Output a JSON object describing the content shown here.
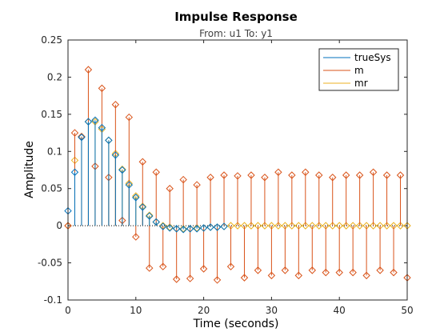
{
  "chart_data": {
    "type": "stem",
    "title": "Impulse Response",
    "subtitle": "From: u1  To: y1",
    "xlabel": "Time (seconds)",
    "ylabel": "Amplitude",
    "xlim": [
      0,
      50
    ],
    "ylim": [
      -0.1,
      0.25
    ],
    "xticks": [
      0,
      10,
      20,
      30,
      40,
      50
    ],
    "yticks": [
      -0.1,
      -0.05,
      0,
      0.05,
      0.1,
      0.15,
      0.2,
      0.25
    ],
    "xtick_labels": [
      "0",
      "10",
      "20",
      "30",
      "40",
      "50"
    ],
    "ytick_labels": [
      "-0.1",
      "-0.05",
      "0",
      "0.05",
      "0.1",
      "0.15",
      "0.2",
      "0.25"
    ],
    "grid": false,
    "legend_position": "top-right",
    "series": [
      {
        "name": "trueSys",
        "color": "#0072BD",
        "x": [
          0,
          1,
          2,
          3,
          4,
          5,
          6,
          7,
          8,
          9,
          10,
          11,
          12,
          13,
          14,
          15,
          16,
          17,
          18,
          19,
          20,
          21,
          22,
          23
        ],
        "values": [
          0.02,
          0.072,
          0.119,
          0.14,
          0.142,
          0.132,
          0.115,
          0.095,
          0.075,
          0.055,
          0.038,
          0.025,
          0.013,
          0.005,
          -0.001,
          -0.003,
          -0.004,
          -0.005,
          -0.004,
          -0.004,
          -0.003,
          -0.002,
          -0.002,
          -0.001
        ]
      },
      {
        "name": "m",
        "color": "#D95319",
        "x": [
          0,
          1,
          2,
          3,
          4,
          5,
          6,
          7,
          8,
          9,
          10,
          11,
          12,
          13,
          14,
          15,
          16,
          17,
          18,
          19,
          20,
          21,
          22,
          23,
          24,
          25,
          26,
          27,
          28,
          29,
          30,
          31,
          32,
          33,
          34,
          35,
          36,
          37,
          38,
          39,
          40,
          41,
          42,
          43,
          44,
          45,
          46,
          47,
          48,
          49,
          50
        ],
        "values": [
          0.0,
          0.125,
          0.12,
          0.21,
          0.08,
          0.185,
          0.065,
          0.163,
          0.007,
          0.146,
          -0.015,
          0.086,
          -0.057,
          0.072,
          -0.055,
          0.05,
          -0.072,
          0.062,
          -0.071,
          0.055,
          -0.058,
          0.065,
          -0.073,
          0.068,
          -0.055,
          0.067,
          -0.07,
          0.068,
          -0.06,
          0.065,
          -0.067,
          0.072,
          -0.06,
          0.068,
          -0.067,
          0.072,
          -0.06,
          0.068,
          -0.063,
          0.065,
          -0.063,
          0.068,
          -0.063,
          0.068,
          -0.067,
          0.072,
          -0.06,
          0.068,
          -0.063,
          0.068,
          -0.07
        ]
      },
      {
        "name": "mr",
        "color": "#EDB120",
        "x": [
          0,
          1,
          2,
          3,
          4,
          5,
          6,
          7,
          8,
          9,
          10,
          11,
          12,
          13,
          14,
          15,
          16,
          17,
          18,
          19,
          20,
          21,
          22,
          23,
          24,
          25,
          26,
          27,
          28,
          29,
          30,
          31,
          32,
          33,
          34,
          35,
          36,
          37,
          38,
          39,
          40,
          41,
          42,
          43,
          44,
          45,
          46,
          47,
          48,
          49,
          50
        ],
        "values": [
          0.0,
          0.088,
          0.12,
          0.14,
          0.14,
          0.13,
          0.115,
          0.097,
          0.076,
          0.057,
          0.04,
          0.026,
          0.014,
          0.005,
          0.0,
          -0.002,
          -0.004,
          -0.004,
          -0.004,
          -0.003,
          -0.003,
          -0.002,
          -0.002,
          -0.001,
          0.0,
          0.0,
          0.0,
          0.0,
          0.0,
          0.0,
          0.0,
          0.0,
          0.0,
          0.0,
          0.0,
          0.0,
          0.0,
          0.0,
          0.0,
          0.0,
          0.0,
          0.0,
          0.0,
          0.0,
          0.0,
          0.0,
          0.0,
          0.0,
          0.0,
          0.0,
          0.0
        ]
      }
    ]
  }
}
